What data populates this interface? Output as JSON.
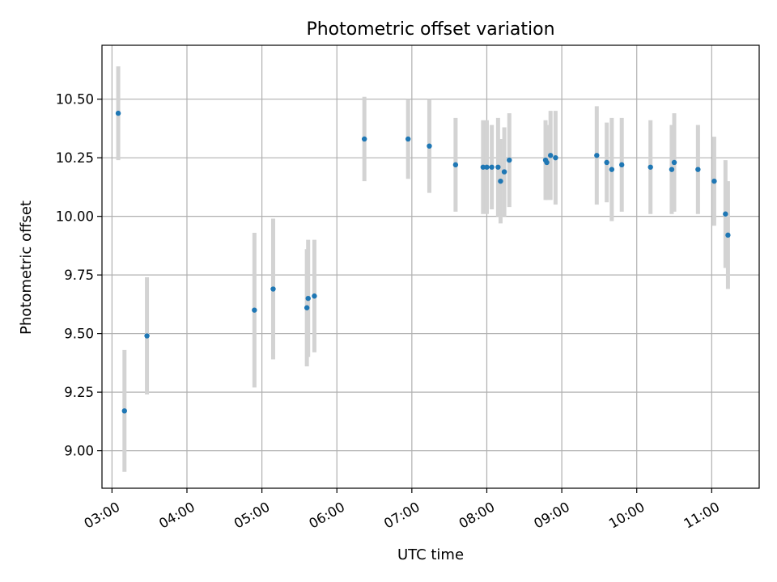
{
  "chart_data": {
    "type": "scatter",
    "title": "Photometric offset variation",
    "xlabel": "UTC time",
    "ylabel": "Photometric offset",
    "xlim": [
      "02:52",
      "11:38"
    ],
    "ylim": [
      8.84,
      10.73
    ],
    "x_ticks": [
      "03:00",
      "04:00",
      "05:00",
      "06:00",
      "07:00",
      "08:00",
      "09:00",
      "10:00",
      "11:00"
    ],
    "y_ticks": [
      "9.00",
      "9.25",
      "9.50",
      "9.75",
      "10.00",
      "10.25",
      "10.50"
    ],
    "grid": true,
    "point_color": "#1f77b4",
    "errorbar_color": "#d3d3d3",
    "points": [
      {
        "x": "03:05",
        "y": 10.44,
        "err": 0.2
      },
      {
        "x": "03:10",
        "y": 9.17,
        "err": 0.26
      },
      {
        "x": "03:28",
        "y": 9.49,
        "err": 0.25
      },
      {
        "x": "04:54",
        "y": 9.6,
        "err": 0.33
      },
      {
        "x": "05:09",
        "y": 9.69,
        "err": 0.3
      },
      {
        "x": "05:36",
        "y": 9.61,
        "err": 0.25
      },
      {
        "x": "05:37",
        "y": 9.65,
        "err": 0.25
      },
      {
        "x": "05:42",
        "y": 9.66,
        "err": 0.24
      },
      {
        "x": "06:22",
        "y": 10.33,
        "err": 0.18
      },
      {
        "x": "06:57",
        "y": 10.33,
        "err": 0.17
      },
      {
        "x": "07:14",
        "y": 10.3,
        "err": 0.2
      },
      {
        "x": "07:35",
        "y": 10.22,
        "err": 0.2
      },
      {
        "x": "07:57",
        "y": 10.21,
        "err": 0.2
      },
      {
        "x": "08:00",
        "y": 10.21,
        "err": 0.2
      },
      {
        "x": "08:04",
        "y": 10.21,
        "err": 0.18
      },
      {
        "x": "08:09",
        "y": 10.21,
        "err": 0.21
      },
      {
        "x": "08:11",
        "y": 10.15,
        "err": 0.18
      },
      {
        "x": "08:14",
        "y": 10.19,
        "err": 0.19
      },
      {
        "x": "08:18",
        "y": 10.24,
        "err": 0.2
      },
      {
        "x": "08:47",
        "y": 10.24,
        "err": 0.17
      },
      {
        "x": "08:48",
        "y": 10.23,
        "err": 0.16
      },
      {
        "x": "08:51",
        "y": 10.26,
        "err": 0.19
      },
      {
        "x": "08:55",
        "y": 10.25,
        "err": 0.2
      },
      {
        "x": "09:28",
        "y": 10.26,
        "err": 0.21
      },
      {
        "x": "09:36",
        "y": 10.23,
        "err": 0.17
      },
      {
        "x": "09:40",
        "y": 10.2,
        "err": 0.22
      },
      {
        "x": "09:48",
        "y": 10.22,
        "err": 0.2
      },
      {
        "x": "10:11",
        "y": 10.21,
        "err": 0.2
      },
      {
        "x": "10:28",
        "y": 10.2,
        "err": 0.19
      },
      {
        "x": "10:30",
        "y": 10.23,
        "err": 0.21
      },
      {
        "x": "10:49",
        "y": 10.2,
        "err": 0.19
      },
      {
        "x": "11:02",
        "y": 10.15,
        "err": 0.19
      },
      {
        "x": "11:11",
        "y": 10.01,
        "err": 0.23
      },
      {
        "x": "11:13",
        "y": 9.92,
        "err": 0.23
      }
    ]
  }
}
